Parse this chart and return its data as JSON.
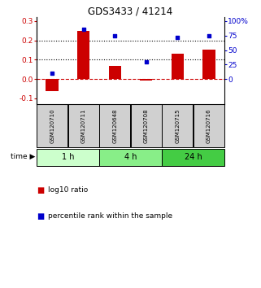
{
  "title": "GDS3433 / 41214",
  "samples": [
    "GSM120710",
    "GSM120711",
    "GSM120648",
    "GSM120708",
    "GSM120715",
    "GSM120716"
  ],
  "log10_ratio": [
    -0.062,
    0.25,
    0.068,
    -0.01,
    0.132,
    0.153
  ],
  "percentile_rank": [
    10.0,
    86.0,
    75.0,
    30.0,
    72.0,
    74.0
  ],
  "left_ylim": [
    -0.13,
    0.32
  ],
  "left_yticks": [
    -0.1,
    0.0,
    0.1,
    0.2,
    0.3
  ],
  "right_yticks": [
    0,
    25,
    50,
    75,
    100
  ],
  "right_ylim": [
    -43.33,
    106.67
  ],
  "bar_color": "#cc0000",
  "scatter_color": "#0000cc",
  "time_groups": [
    {
      "label": "1 h",
      "start": 0,
      "end": 2,
      "color": "#ccffcc"
    },
    {
      "label": "4 h",
      "start": 2,
      "end": 4,
      "color": "#88ee88"
    },
    {
      "label": "24 h",
      "start": 4,
      "end": 6,
      "color": "#44cc44"
    }
  ],
  "dotted_levels": [
    0.1,
    0.2
  ],
  "zero_line_color": "#cc0000",
  "legend_log10_label": "log10 ratio",
  "legend_pct_label": "percentile rank within the sample",
  "time_label": "time"
}
